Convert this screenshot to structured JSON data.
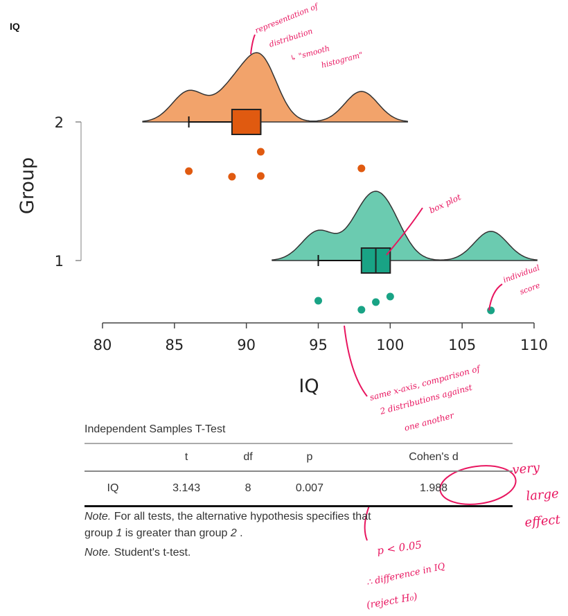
{
  "plot_title": "IQ",
  "chart_data": {
    "type": "raincloud",
    "xlabel": "IQ",
    "ylabel": "Group",
    "xlim": [
      80,
      110
    ],
    "xticks": [
      80,
      85,
      90,
      95,
      100,
      105,
      110
    ],
    "yticks": [
      "1",
      "2"
    ],
    "grid": false,
    "series": [
      {
        "group": "2",
        "color": "#f2a36b",
        "box_color": "#e05a10",
        "points": [
          86,
          89,
          91,
          91,
          98
        ],
        "box": {
          "whisker_low": 86,
          "q1": 89,
          "median": 91,
          "q3": 91,
          "whisker_high": 91
        }
      },
      {
        "group": "1",
        "color": "#6bcbb0",
        "box_color": "#19a385",
        "points": [
          95,
          98,
          99,
          100,
          107
        ],
        "box": {
          "whisker_low": 95,
          "q1": 98,
          "median": 99,
          "q3": 100,
          "whisker_high": 100
        }
      }
    ]
  },
  "table": {
    "title": "Independent Samples T-Test",
    "columns": [
      "",
      "t",
      "df",
      "p",
      "Cohen's d"
    ],
    "rows": [
      [
        "IQ",
        "3.143",
        "8",
        "0.007",
        "1.988"
      ]
    ],
    "note1_label": "Note.",
    "note1_text": " For all tests, the alternative hypothesis specifies that",
    "note1_line2_a": "group ",
    "note1_g1": "1",
    "note1_line2_b": " is greater than group ",
    "note1_g2": "2",
    "note1_line2_c": " .",
    "note2_label": "Note.",
    "note2_text": " Student's t-test."
  },
  "annotations": {
    "distribution": [
      "representation of",
      "distribution",
      "↳ \"smooth",
      "histogram\""
    ],
    "boxplot": "box plot",
    "individual": [
      "individual",
      "score"
    ],
    "axis": [
      "same x-axis, comparison of",
      "2 distributions against",
      "one another"
    ],
    "effect": [
      "very",
      "large",
      "effect"
    ],
    "pvalue": [
      "p < 0.05",
      "∴ difference in IQ",
      "(reject H₀)"
    ],
    "color": "#e8155f"
  }
}
